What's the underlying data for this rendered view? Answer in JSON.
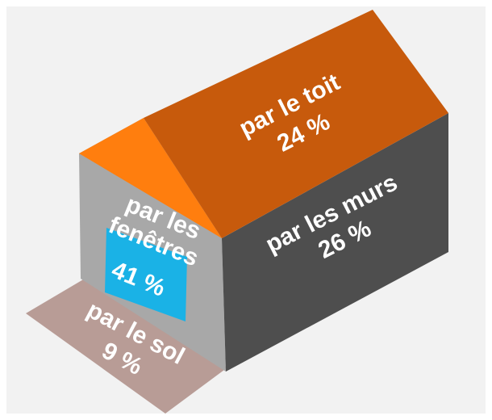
{
  "parts": [
    {
      "label": "par le toit",
      "value": "24 %"
    },
    {
      "label": "par les murs",
      "value": "26 %"
    },
    {
      "label": "par les fenêtres",
      "value": "41 %"
    },
    {
      "label": "par le sol",
      "value": "9 %"
    }
  ]
}
